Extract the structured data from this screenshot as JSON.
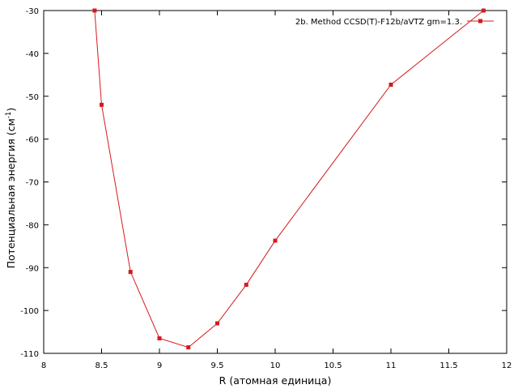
{
  "chart_data": {
    "type": "line",
    "title": "",
    "xlabel": "R (атомная единица)",
    "ylabel_main": "Потенциальная энергия (см",
    "ylabel_sup": "-1",
    "ylabel_close": ")",
    "xlim": [
      8,
      12
    ],
    "ylim": [
      -110,
      -30
    ],
    "xticks": [
      8,
      8.5,
      9,
      9.5,
      10,
      10.5,
      11,
      11.5,
      12
    ],
    "xtick_labels": [
      "8",
      "8.5",
      "9",
      "9.5",
      "10",
      "10.5",
      "11",
      "11.5",
      "12"
    ],
    "yticks": [
      -110,
      -100,
      -90,
      -80,
      -70,
      -60,
      -50,
      -40,
      -30
    ],
    "ytick_labels": [
      "-110",
      "-100",
      "-90",
      "-80",
      "-70",
      "-60",
      "-50",
      "-40",
      "-30"
    ],
    "grid": false,
    "legend_position": "top-right",
    "series": [
      {
        "name": "2b. Method CCSD(T)-F12b/aVTZ gm=1.3.",
        "color": "#d7191c",
        "x": [
          8.44,
          8.5,
          8.75,
          9.0,
          9.25,
          9.5,
          9.75,
          10.0,
          11.0,
          11.8
        ],
        "y": [
          -30.0,
          -52.0,
          -91.0,
          -106.5,
          -108.6,
          -103.0,
          -94.0,
          -83.7,
          -47.3,
          -30.0
        ]
      }
    ]
  }
}
